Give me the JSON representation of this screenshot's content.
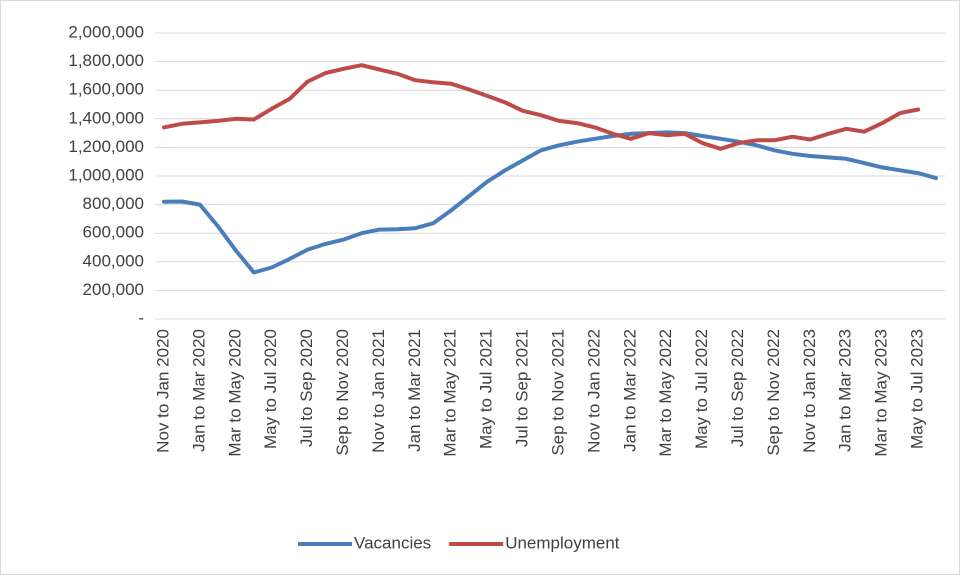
{
  "chart_data": {
    "type": "line",
    "categories": [
      "Nov to Jan 2020",
      null,
      "Jan to Mar 2020",
      null,
      "Mar to May 2020",
      null,
      "May to Jul 2020",
      null,
      "Jul to Sep 2020",
      null,
      "Sep to Nov 2020",
      null,
      "Nov to Jan 2021",
      null,
      "Jan to Mar 2021",
      null,
      "Mar to May 2021",
      null,
      "May to Jul 2021",
      null,
      "Jul to Sep 2021",
      null,
      "Sep to Nov 2021",
      null,
      "Nov to Jan 2022",
      null,
      "Jan to Mar 2022",
      null,
      "Mar to May 2022",
      null,
      "May to Jul 2022",
      null,
      "Jul to Sep 2022",
      null,
      "Sep to Nov 2022",
      null,
      "Nov to Jan 2023",
      null,
      "Jan to Mar 2023",
      null,
      "Mar to May 2023",
      null,
      "May to Jul 2023",
      null
    ],
    "series": [
      {
        "name": "Vacancies",
        "color": "#4a7ebb",
        "values": [
          820000,
          822000,
          800000,
          650000,
          480000,
          325000,
          360000,
          420000,
          485000,
          525000,
          555000,
          600000,
          625000,
          628000,
          635000,
          670000,
          760000,
          860000,
          960000,
          1040000,
          1110000,
          1180000,
          1215000,
          1240000,
          1260000,
          1280000,
          1295000,
          1300000,
          1305000,
          1300000,
          1280000,
          1260000,
          1240000,
          1215000,
          1180000,
          1155000,
          1140000,
          1130000,
          1120000,
          1090000,
          1060000,
          1040000,
          1020000,
          985000
        ]
      },
      {
        "name": "Unemployment",
        "color": "#be4b48",
        "values": [
          1340000,
          1365000,
          1375000,
          1385000,
          1400000,
          1395000,
          1470000,
          1540000,
          1660000,
          1720000,
          1750000,
          1775000,
          1745000,
          1715000,
          1670000,
          1655000,
          1645000,
          1605000,
          1560000,
          1515000,
          1455000,
          1425000,
          1385000,
          1370000,
          1340000,
          1295000,
          1260000,
          1300000,
          1285000,
          1295000,
          1230000,
          1190000,
          1230000,
          1250000,
          1250000,
          1275000,
          1255000,
          1295000,
          1330000,
          1310000,
          1370000,
          1440000,
          1465000,
          null
        ]
      }
    ],
    "ylim": [
      0,
      2000000
    ],
    "yticks": [
      {
        "value": 0,
        "label": "-"
      },
      {
        "value": 200000,
        "label": "200,000"
      },
      {
        "value": 400000,
        "label": "400,000"
      },
      {
        "value": 600000,
        "label": "600,000"
      },
      {
        "value": 800000,
        "label": "800,000"
      },
      {
        "value": 1000000,
        "label": "1,000,000"
      },
      {
        "value": 1200000,
        "label": "1,200,000"
      },
      {
        "value": 1400000,
        "label": "1,400,000"
      },
      {
        "value": 1600000,
        "label": "1,600,000"
      },
      {
        "value": 1800000,
        "label": "1,800,000"
      },
      {
        "value": 2000000,
        "label": "2,000,000"
      }
    ],
    "grid": true,
    "legend": "bottom"
  }
}
